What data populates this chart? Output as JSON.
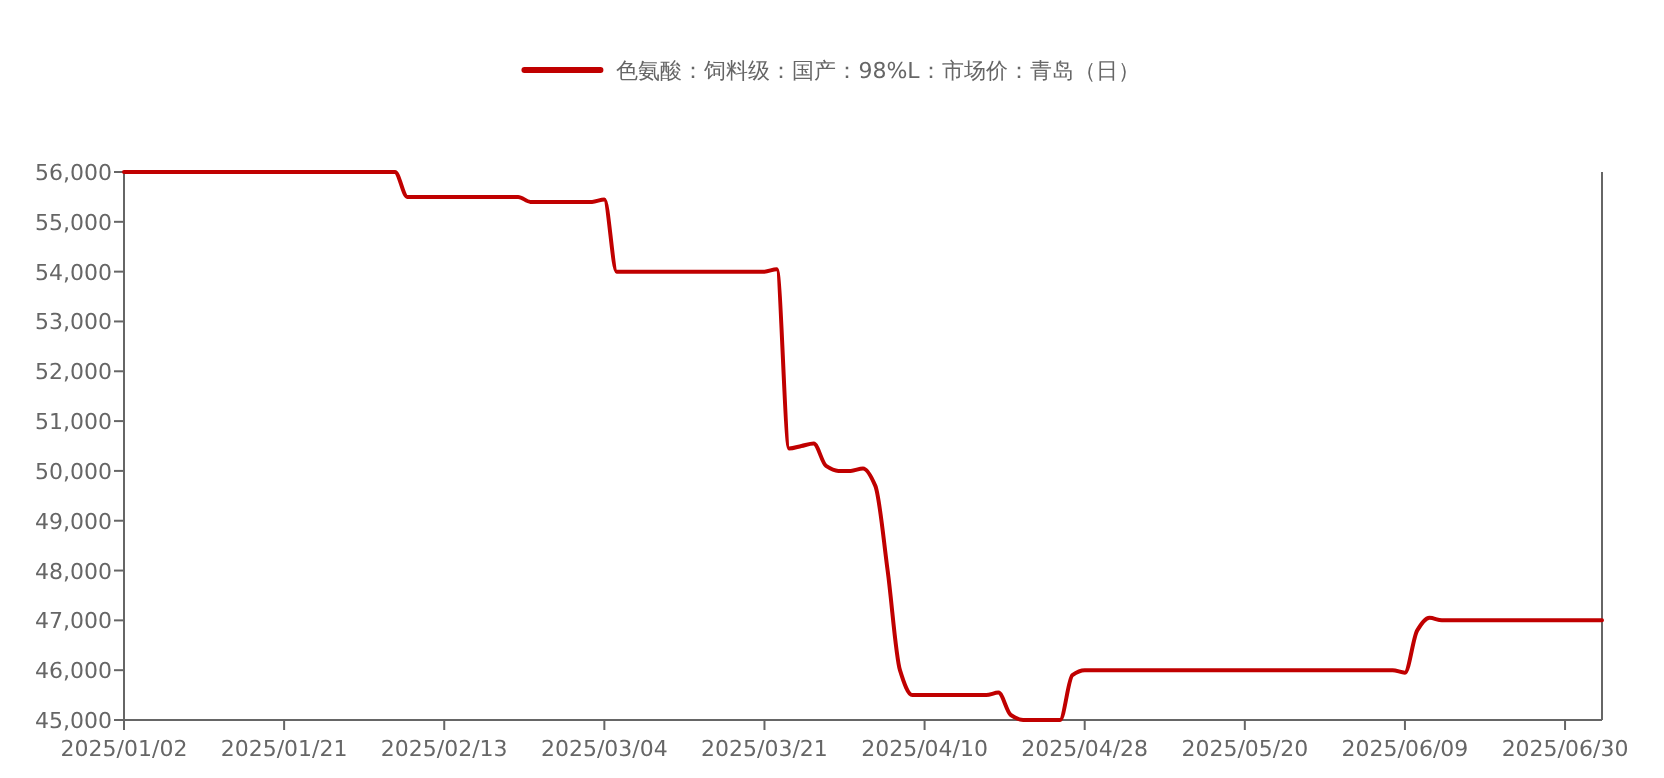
{
  "chart_data": {
    "type": "line",
    "categories": [
      "2025/01/02",
      null,
      null,
      null,
      null,
      null,
      null,
      null,
      null,
      null,
      null,
      null,
      null,
      "2025/01/21",
      null,
      null,
      null,
      null,
      null,
      null,
      null,
      null,
      null,
      null,
      null,
      null,
      "2025/02/13",
      null,
      null,
      null,
      null,
      null,
      null,
      null,
      null,
      null,
      null,
      null,
      null,
      "2025/03/04",
      null,
      null,
      null,
      null,
      null,
      null,
      null,
      null,
      null,
      null,
      null,
      null,
      "2025/03/21",
      null,
      null,
      null,
      null,
      null,
      null,
      null,
      null,
      null,
      null,
      null,
      null,
      "2025/04/10",
      null,
      null,
      null,
      null,
      null,
      null,
      null,
      null,
      null,
      null,
      null,
      null,
      "2025/04/28",
      null,
      null,
      null,
      null,
      null,
      null,
      null,
      null,
      null,
      null,
      null,
      null,
      "2025/05/20",
      null,
      null,
      null,
      null,
      null,
      null,
      null,
      null,
      null,
      null,
      null,
      null,
      "2025/06/09",
      null,
      null,
      null,
      null,
      null,
      null,
      null,
      null,
      null,
      null,
      null,
      null,
      "2025/06/30",
      null,
      null,
      null
    ],
    "series": [
      {
        "name": "色氨酸：饲料级：国产：98%L：市场价：青岛（日）",
        "color": "#c00000",
        "values": [
          56000,
          56000,
          56000,
          56000,
          56000,
          56000,
          56000,
          56000,
          56000,
          56000,
          56000,
          56000,
          56000,
          56000,
          56000,
          56000,
          56000,
          56000,
          56000,
          56000,
          56000,
          56000,
          56000,
          55500,
          55500,
          55500,
          55500,
          55500,
          55500,
          55500,
          55500,
          55500,
          55500,
          55400,
          55400,
          55400,
          55400,
          55400,
          55400,
          55450,
          54000,
          54000,
          54000,
          54000,
          54000,
          54000,
          54000,
          54000,
          54000,
          54000,
          54000,
          54000,
          54000,
          54050,
          50450,
          50500,
          50550,
          50100,
          50000,
          50000,
          50050,
          49700,
          48000,
          46000,
          45500,
          45500,
          45500,
          45500,
          45500,
          45500,
          45500,
          45550,
          45100,
          45000,
          45000,
          45000,
          45000,
          45900,
          46000,
          46000,
          46000,
          46000,
          46000,
          46000,
          46000,
          46000,
          46000,
          46000,
          46000,
          46000,
          46000,
          46000,
          46000,
          46000,
          46000,
          46000,
          46000,
          46000,
          46000,
          46000,
          46000,
          46000,
          46000,
          46000,
          45950,
          46800,
          47050,
          47000,
          47000,
          47000,
          47000,
          47000,
          47000,
          47000,
          47000,
          47000,
          47000,
          47000,
          47000,
          47000,
          47000
        ]
      }
    ],
    "ylim": [
      45000,
      56000
    ],
    "yticks": [
      {
        "value": 45000,
        "label": "45,000"
      },
      {
        "value": 46000,
        "label": "46,000"
      },
      {
        "value": 47000,
        "label": "47,000"
      },
      {
        "value": 48000,
        "label": "48,000"
      },
      {
        "value": 49000,
        "label": "49,000"
      },
      {
        "value": 50000,
        "label": "50,000"
      },
      {
        "value": 51000,
        "label": "51,000"
      },
      {
        "value": 52000,
        "label": "52,000"
      },
      {
        "value": 53000,
        "label": "53,000"
      },
      {
        "value": 54000,
        "label": "54,000"
      },
      {
        "value": 55000,
        "label": "55,000"
      },
      {
        "value": 56000,
        "label": "56,000"
      }
    ],
    "legend": "top",
    "grid": false,
    "marker": "none",
    "line_style": "solid"
  }
}
